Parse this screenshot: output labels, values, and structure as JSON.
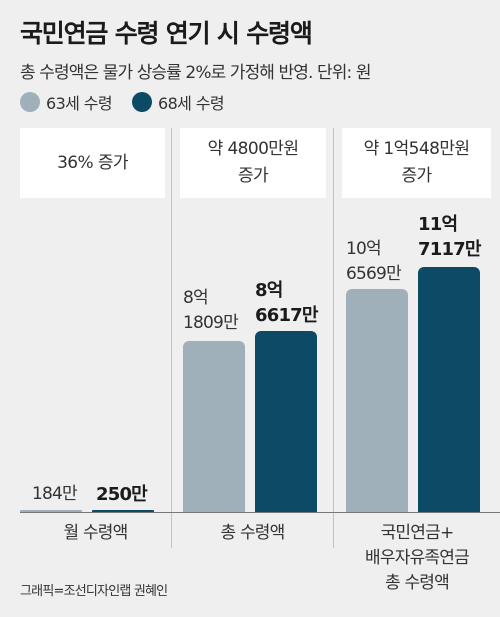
{
  "title": "국민연금 수령 연기 시 수령액",
  "subtitle": "총 수령액은 물가 상승률 2%로 가정해 반영. 단위: 원",
  "legend": [
    {
      "name": "63세 수령",
      "color": "#9fb0bb"
    },
    {
      "name": "68세 수령",
      "color": "#0c4a66"
    }
  ],
  "boxes": [
    {
      "text": "36% 증가"
    },
    {
      "line1": "약 4800만원",
      "line2": "증가"
    },
    {
      "line1": "약 1억548만원",
      "line2": "증가"
    }
  ],
  "groups": [
    {
      "category": [
        "월 수령액"
      ],
      "label_63": [
        "184만"
      ],
      "label_68": [
        "250만"
      ]
    },
    {
      "category": [
        "총 수령액"
      ],
      "label_63": [
        "8억",
        "1809만"
      ],
      "label_68": [
        "8억",
        "6617만"
      ]
    },
    {
      "category": [
        "국민연금+",
        "배우자유족연금",
        "총 수령액"
      ],
      "label_63": [
        "10억",
        "6569만"
      ],
      "label_68": [
        "11억",
        "7117만"
      ]
    }
  ],
  "credit": "그래픽=조선디자인랩 권혜인",
  "chart_data": {
    "type": "bar",
    "title": "국민연금 수령 연기 시 수령액",
    "subtitle": "총 수령액은 물가 상승률 2%로 가정해 반영. 단위: 원",
    "categories": [
      "월 수령액",
      "총 수령액",
      "국민연금+배우자유족연금 총 수령액"
    ],
    "series": [
      {
        "name": "63세 수령",
        "values": [
          1840000,
          818090000,
          1065690000
        ]
      },
      {
        "name": "68세 수령",
        "values": [
          2500000,
          866170000,
          1171170000
        ]
      }
    ],
    "annotations": [
      "36% 증가",
      "약 4800만원 증가",
      "약 1억548만원 증가"
    ],
    "grid": false,
    "legend": "top-left"
  }
}
